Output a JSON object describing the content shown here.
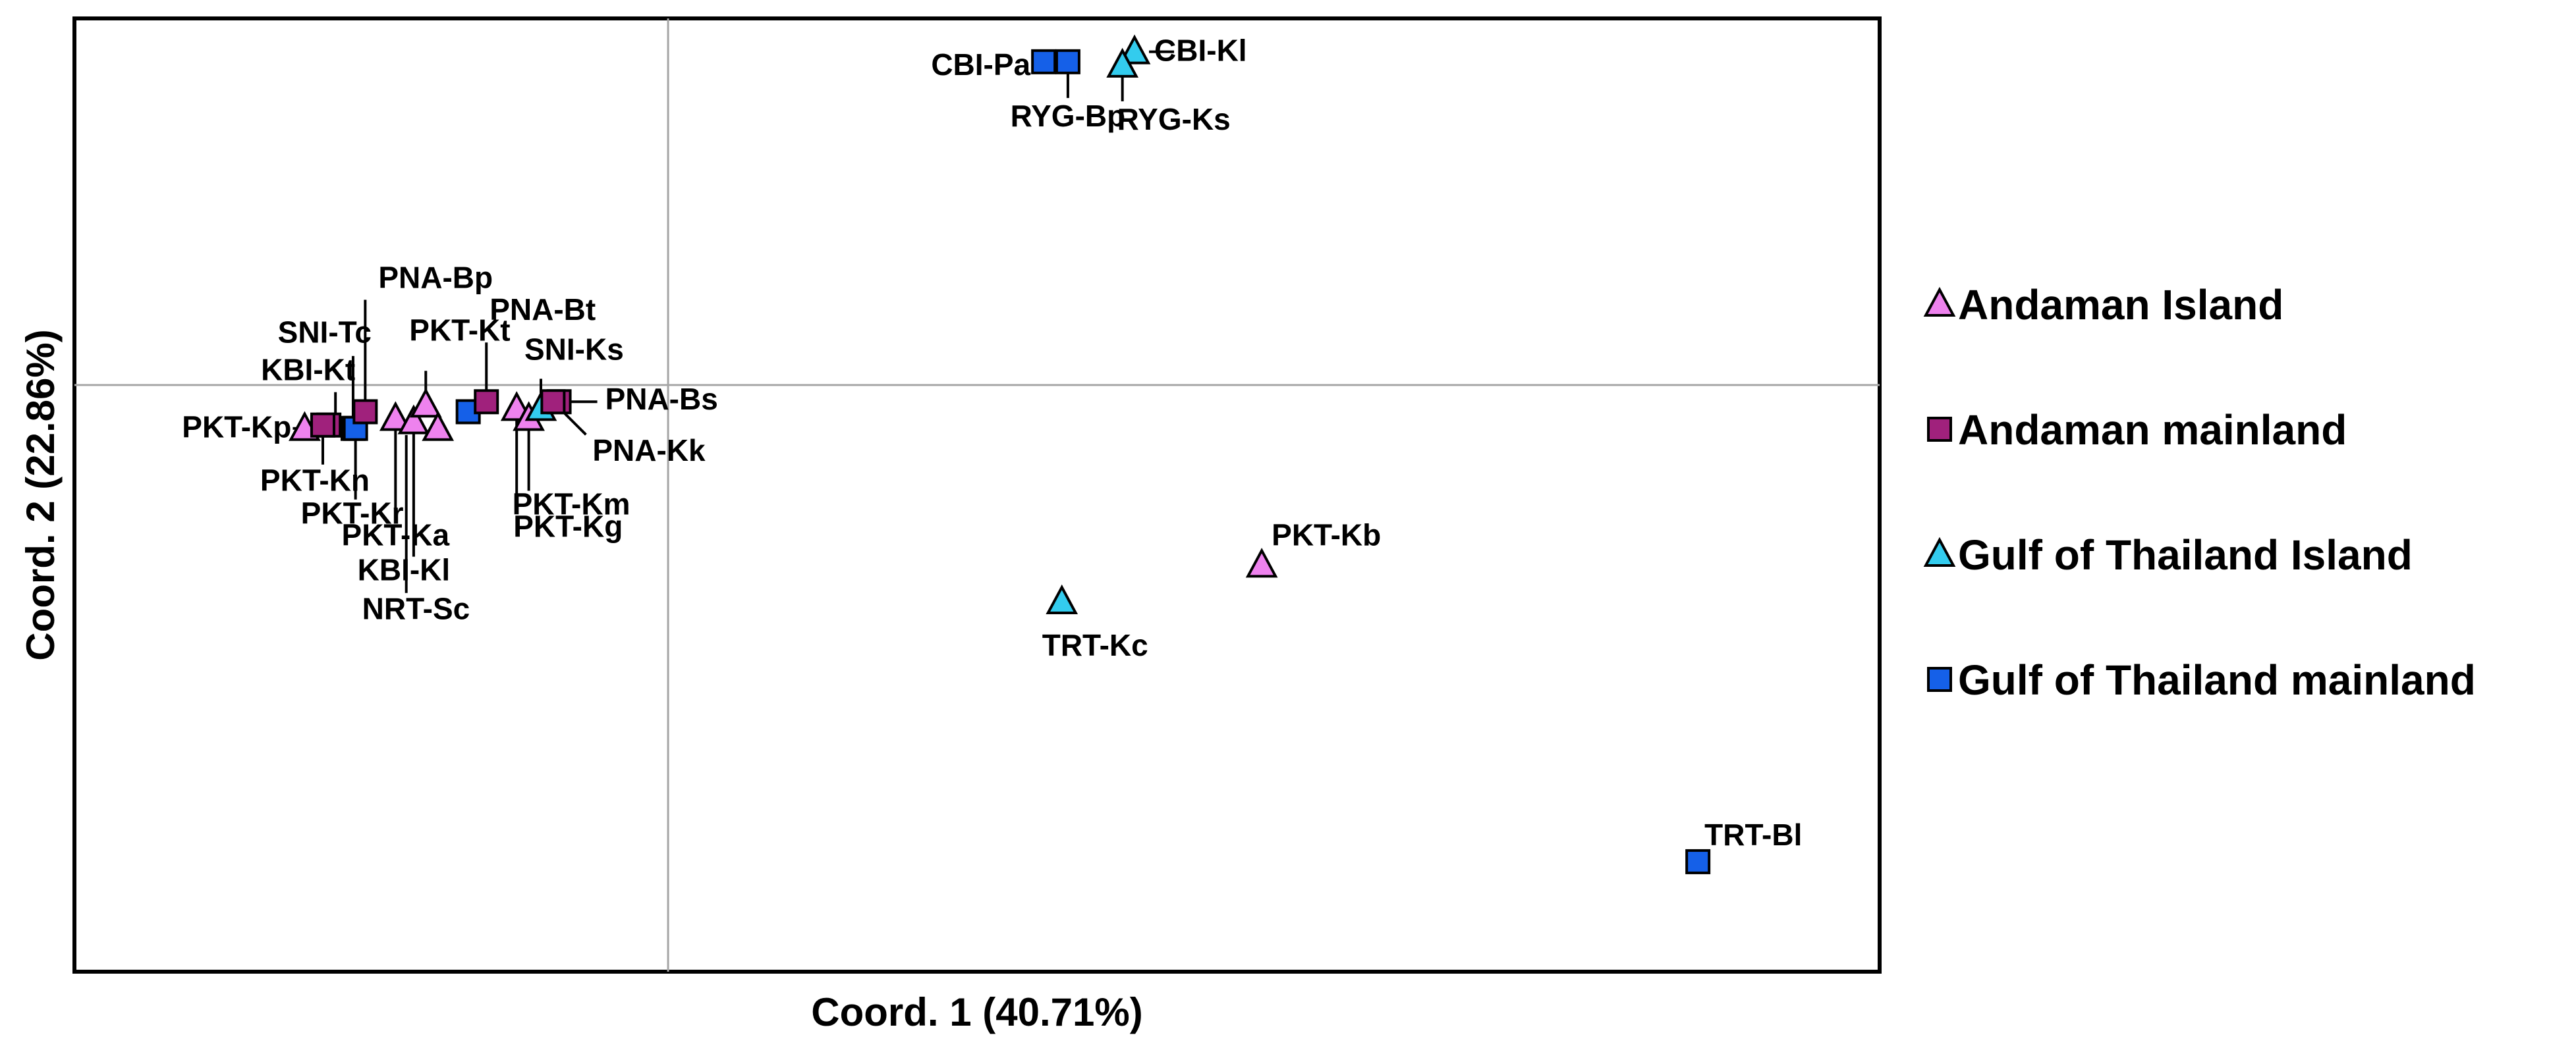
{
  "chart_data": {
    "type": "scatter",
    "title": "",
    "xlabel": "Coord. 1 (40.71%)",
    "ylabel": "Coord. 2 (22.86%)",
    "xlim": [
      -0.49,
      1.0
    ],
    "ylim": [
      -0.88,
      0.55
    ],
    "grid": false,
    "reference_lines": {
      "x": 0,
      "y": 0
    },
    "legend_position": "right",
    "groups": [
      {
        "name": "Andaman Island",
        "marker": "triangle",
        "color": "#ee82ee"
      },
      {
        "name": "Andaman mainland",
        "marker": "square",
        "color": "#a0217c"
      },
      {
        "name": "Gulf of Thailand Island",
        "marker": "triangle",
        "color": "#33ccee"
      },
      {
        "name": "Gulf of Thailand mainland",
        "marker": "square",
        "color": "#1560e8"
      }
    ],
    "points": [
      {
        "label": "CBI-Pa",
        "group": 3,
        "x": 0.31,
        "y": 0.485
      },
      {
        "label": "RYG-Bp",
        "group": 3,
        "x": 0.33,
        "y": 0.485
      },
      {
        "label": "CBI-Kl",
        "group": 2,
        "x": 0.385,
        "y": 0.5
      },
      {
        "label": "RYG-Ks",
        "group": 2,
        "x": 0.375,
        "y": 0.48
      },
      {
        "label": "PKT-Kp",
        "group": 0,
        "x": -0.3,
        "y": -0.065
      },
      {
        "label": "KBI-Kt",
        "group": 1,
        "x": -0.28,
        "y": -0.06
      },
      {
        "label": "PKT-Kn",
        "group": 1,
        "x": -0.285,
        "y": -0.06
      },
      {
        "label": "SNI-Tc",
        "group": 3,
        "x": -0.26,
        "y": -0.065
      },
      {
        "label": "PKT-Kr",
        "group": 3,
        "x": -0.258,
        "y": -0.065
      },
      {
        "label": "PNA-Bp",
        "group": 1,
        "x": -0.25,
        "y": -0.04
      },
      {
        "label": "PKT-Ka",
        "group": 0,
        "x": -0.225,
        "y": -0.05
      },
      {
        "label": "KBI-Kl",
        "group": 0,
        "x": -0.21,
        "y": -0.055
      },
      {
        "label": "PKT-Kt",
        "group": 0,
        "x": -0.2,
        "y": -0.03
      },
      {
        "label": "NRT-Sc",
        "group": 0,
        "x": -0.19,
        "y": -0.065
      },
      {
        "label": "",
        "group": 3,
        "x": -0.165,
        "y": -0.04
      },
      {
        "label": "PNA-Bt",
        "group": 1,
        "x": -0.15,
        "y": -0.025
      },
      {
        "label": "PKT-Kg",
        "group": 0,
        "x": -0.125,
        "y": -0.035
      },
      {
        "label": "PKT-Km",
        "group": 0,
        "x": -0.115,
        "y": -0.05
      },
      {
        "label": "SNI-Ks",
        "group": 2,
        "x": -0.105,
        "y": -0.035
      },
      {
        "label": "PNA-Bs",
        "group": 1,
        "x": -0.09,
        "y": -0.025
      },
      {
        "label": "PNA-Kk",
        "group": 1,
        "x": -0.095,
        "y": -0.025
      },
      {
        "label": "PKT-Kb",
        "group": 0,
        "x": 0.49,
        "y": -0.27
      },
      {
        "label": "TRT-Kc",
        "group": 2,
        "x": 0.325,
        "y": -0.325
      },
      {
        "label": "TRT-Bl",
        "group": 3,
        "x": 0.85,
        "y": -0.715
      }
    ]
  }
}
